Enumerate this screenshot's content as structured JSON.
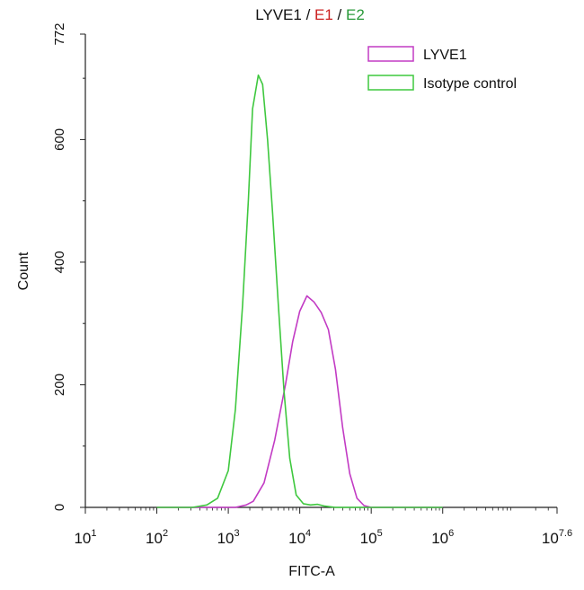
{
  "chart_data": {
    "type": "line",
    "title": {
      "parts": [
        {
          "text": "LYVE1",
          "color": "#111111"
        },
        {
          "text": " / ",
          "color": "#111111"
        },
        {
          "text": "E1",
          "color": "#cc2222"
        },
        {
          "text": " / ",
          "color": "#111111"
        },
        {
          "text": "E2",
          "color": "#2a9a3a"
        }
      ]
    },
    "xlabel": "FITC-A",
    "ylabel": "Count",
    "x_scale": "log10",
    "xlim": [
      1,
      7.6
    ],
    "ylim": [
      0,
      772
    ],
    "x_ticks": [
      {
        "base": "10",
        "exp": "1",
        "value": 1
      },
      {
        "base": "10",
        "exp": "2",
        "value": 2
      },
      {
        "base": "10",
        "exp": "3",
        "value": 3
      },
      {
        "base": "10",
        "exp": "4",
        "value": 4
      },
      {
        "base": "10",
        "exp": "5",
        "value": 5
      },
      {
        "base": "10",
        "exp": "6",
        "value": 6
      },
      {
        "base": "10",
        "exp": "7.6",
        "value": 7.6
      }
    ],
    "y_ticks": [
      {
        "label": "0",
        "value": 0
      },
      {
        "label": "200",
        "value": 200
      },
      {
        "label": "400",
        "value": 400
      },
      {
        "label": "600",
        "value": 600
      },
      {
        "label": "772",
        "value": 772
      }
    ],
    "legend_position": "top-right",
    "series": [
      {
        "name": "LYVE1",
        "color": "#c23bc4",
        "points": [
          [
            2.0,
            0
          ],
          [
            3.1,
            0
          ],
          [
            3.25,
            4
          ],
          [
            3.35,
            10
          ],
          [
            3.5,
            40
          ],
          [
            3.65,
            110
          ],
          [
            3.8,
            200
          ],
          [
            3.9,
            270
          ],
          [
            4.0,
            320
          ],
          [
            4.1,
            345
          ],
          [
            4.2,
            335
          ],
          [
            4.3,
            318
          ],
          [
            4.4,
            290
          ],
          [
            4.5,
            225
          ],
          [
            4.6,
            130
          ],
          [
            4.7,
            55
          ],
          [
            4.8,
            15
          ],
          [
            4.9,
            3
          ],
          [
            5.0,
            0
          ],
          [
            6.0,
            0
          ]
        ]
      },
      {
        "name": "Isotype control",
        "color": "#3fc83f",
        "points": [
          [
            2.0,
            0
          ],
          [
            2.5,
            0
          ],
          [
            2.7,
            4
          ],
          [
            2.85,
            15
          ],
          [
            3.0,
            60
          ],
          [
            3.1,
            160
          ],
          [
            3.2,
            330
          ],
          [
            3.28,
            500
          ],
          [
            3.34,
            650
          ],
          [
            3.42,
            705
          ],
          [
            3.48,
            690
          ],
          [
            3.55,
            600
          ],
          [
            3.62,
            480
          ],
          [
            3.7,
            330
          ],
          [
            3.78,
            190
          ],
          [
            3.86,
            80
          ],
          [
            3.95,
            20
          ],
          [
            4.05,
            6
          ],
          [
            4.15,
            4
          ],
          [
            4.25,
            5
          ],
          [
            4.35,
            2
          ],
          [
            4.5,
            0
          ],
          [
            6.0,
            0
          ]
        ]
      }
    ]
  }
}
